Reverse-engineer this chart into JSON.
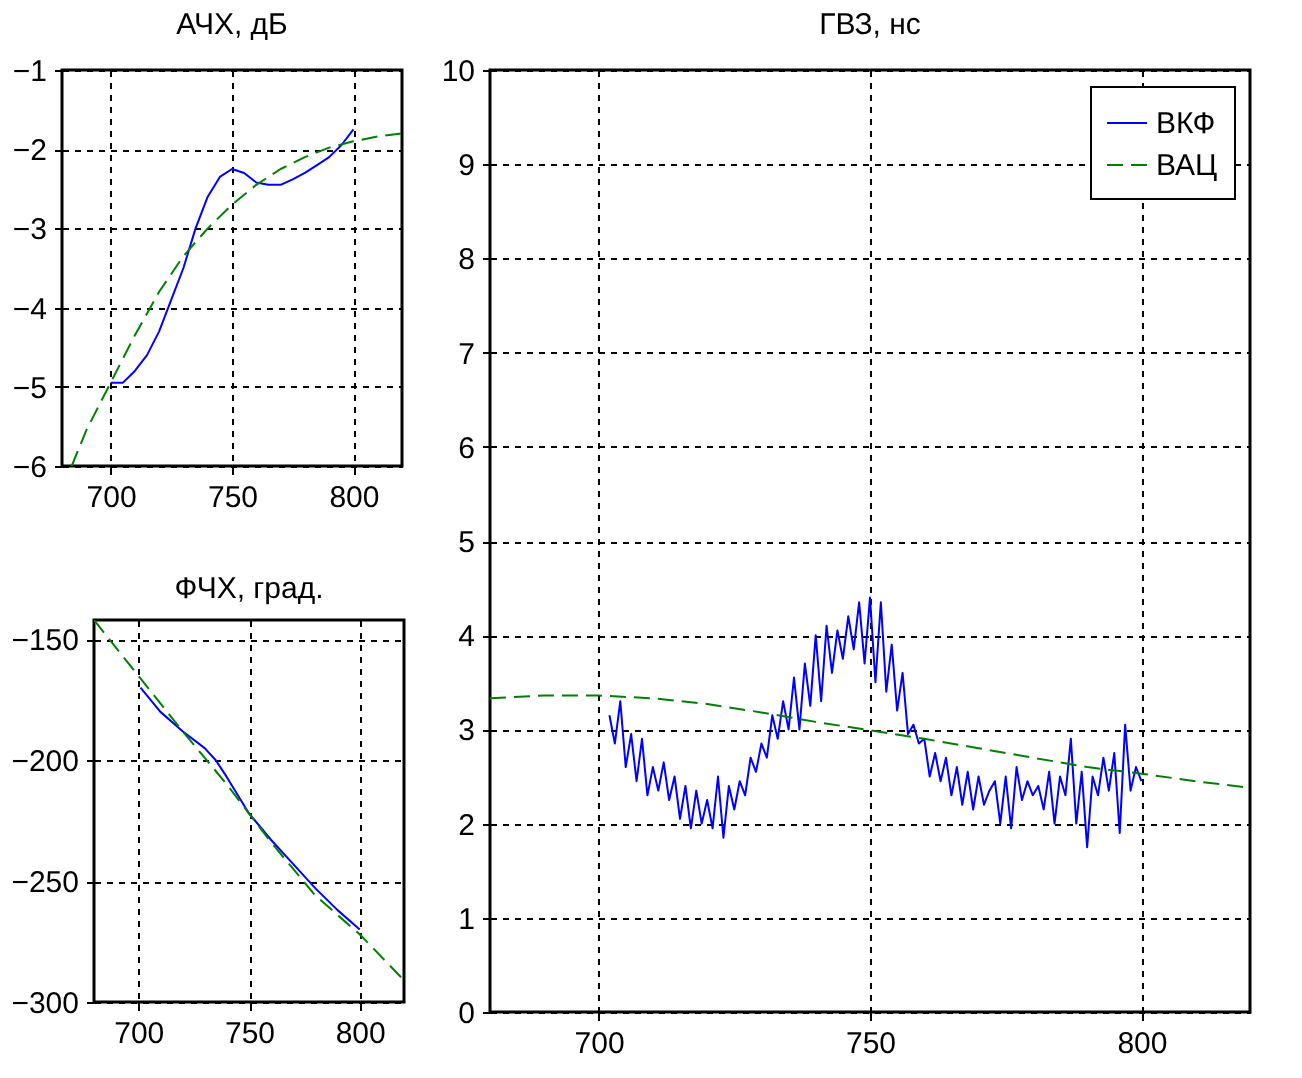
{
  "chart_data": [
    {
      "type": "line",
      "title": "АЧХ, дБ",
      "xlim": [
        680,
        820
      ],
      "ylim": [
        -6,
        -1
      ],
      "xticks": [
        700,
        750,
        800
      ],
      "yticks": [
        -6,
        -5,
        -4,
        -3,
        -2,
        -1
      ],
      "grid": true,
      "series": [
        {
          "color": "#0000ff",
          "line_style": "solid",
          "x": [
            700,
            705,
            710,
            715,
            720,
            725,
            730,
            735,
            740,
            745,
            750,
            755,
            760,
            765,
            770,
            775,
            780,
            785,
            790,
            795,
            800
          ],
          "values": [
            -4.95,
            -4.95,
            -4.8,
            -4.6,
            -4.3,
            -3.9,
            -3.5,
            -3.0,
            -2.6,
            -2.35,
            -2.25,
            -2.3,
            -2.42,
            -2.45,
            -2.45,
            -2.38,
            -2.3,
            -2.2,
            -2.1,
            -1.95,
            -1.75
          ]
        },
        {
          "color": "#008000",
          "line_style": "dashed",
          "x": [
            684,
            690,
            700,
            710,
            720,
            730,
            740,
            750,
            760,
            770,
            780,
            790,
            800,
            810,
            820
          ],
          "values": [
            -6,
            -5.55,
            -4.95,
            -4.35,
            -3.8,
            -3.35,
            -3.0,
            -2.7,
            -2.45,
            -2.25,
            -2.1,
            -1.98,
            -1.9,
            -1.84,
            -1.8
          ]
        }
      ]
    },
    {
      "type": "line",
      "title": "ФЧХ, град.",
      "xlim": [
        680,
        820
      ],
      "ylim": [
        -300,
        -142
      ],
      "xticks": [
        700,
        750,
        800
      ],
      "yticks": [
        -300,
        -250,
        -200,
        -150
      ],
      "grid": true,
      "series": [
        {
          "color": "#0000ff",
          "line_style": "solid",
          "x": [
            701,
            710,
            720,
            730,
            735,
            740,
            750,
            760,
            770,
            780,
            790,
            800
          ],
          "values": [
            -170,
            -180,
            -188,
            -195,
            -200,
            -207,
            -222,
            -233,
            -243,
            -253,
            -262,
            -270
          ]
        },
        {
          "color": "#008000",
          "line_style": "dashed",
          "x": [
            680,
            700,
            720,
            740,
            750,
            760,
            780,
            800,
            820
          ],
          "values": [
            -142,
            -165,
            -188,
            -210,
            -222,
            -234,
            -256,
            -272,
            -291
          ]
        }
      ]
    },
    {
      "type": "line",
      "title": "ГВЗ, нс",
      "xlim": [
        680,
        820
      ],
      "ylim": [
        0,
        10
      ],
      "xticks": [
        700,
        750,
        800
      ],
      "yticks": [
        0,
        1,
        2,
        3,
        4,
        5,
        6,
        7,
        8,
        9,
        10
      ],
      "grid": true,
      "legend": "top right",
      "series": [
        {
          "name": "ВКФ",
          "color": "#0000ff",
          "line_style": "solid",
          "x": [
            702,
            703,
            704,
            705,
            706,
            707,
            708,
            709,
            710,
            711,
            712,
            713,
            714,
            715,
            716,
            717,
            718,
            719,
            720,
            721,
            722,
            723,
            724,
            725,
            726,
            727,
            728,
            729,
            730,
            731,
            732,
            733,
            734,
            735,
            736,
            737,
            738,
            739,
            740,
            741,
            742,
            743,
            744,
            745,
            746,
            747,
            748,
            749,
            750,
            751,
            752,
            753,
            754,
            755,
            756,
            757,
            758,
            759,
            760,
            761,
            762,
            763,
            764,
            765,
            766,
            767,
            768,
            769,
            770,
            771,
            772,
            773,
            774,
            775,
            776,
            777,
            778,
            779,
            780,
            781,
            782,
            783,
            784,
            785,
            786,
            787,
            788,
            789,
            790,
            791,
            792,
            793,
            794,
            795,
            796,
            797,
            798,
            799,
            800
          ],
          "values": [
            3.15,
            2.85,
            3.3,
            2.6,
            2.95,
            2.45,
            2.9,
            2.3,
            2.6,
            2.35,
            2.65,
            2.25,
            2.5,
            2.05,
            2.4,
            1.95,
            2.35,
            2.0,
            2.25,
            1.95,
            2.5,
            1.85,
            2.4,
            2.15,
            2.45,
            2.3,
            2.7,
            2.55,
            2.85,
            2.7,
            3.15,
            2.9,
            3.3,
            3.0,
            3.55,
            3.0,
            3.7,
            3.25,
            4.0,
            3.3,
            4.1,
            3.6,
            4.05,
            3.75,
            4.2,
            3.85,
            4.35,
            3.7,
            4.4,
            3.5,
            4.35,
            3.4,
            3.9,
            3.2,
            3.6,
            2.95,
            3.05,
            2.85,
            2.9,
            2.5,
            2.75,
            2.45,
            2.7,
            2.3,
            2.6,
            2.2,
            2.55,
            2.15,
            2.5,
            2.2,
            2.35,
            2.45,
            2.0,
            2.5,
            1.95,
            2.6,
            2.25,
            2.45,
            2.3,
            2.4,
            2.15,
            2.55,
            2.0,
            2.5,
            2.3,
            2.9,
            2.0,
            2.55,
            1.75,
            2.5,
            2.3,
            2.7,
            2.35,
            2.75,
            1.9,
            3.05,
            2.35,
            2.6,
            2.45
          ]
        },
        {
          "name": "ВАЦ",
          "color": "#008000",
          "line_style": "dashed",
          "x": [
            680,
            690,
            700,
            710,
            720,
            730,
            740,
            750,
            760,
            770,
            780,
            790,
            800,
            810,
            820
          ],
          "values": [
            3.33,
            3.36,
            3.36,
            3.33,
            3.27,
            3.18,
            3.08,
            2.99,
            2.9,
            2.8,
            2.7,
            2.6,
            2.53,
            2.45,
            2.38
          ]
        }
      ]
    }
  ]
}
